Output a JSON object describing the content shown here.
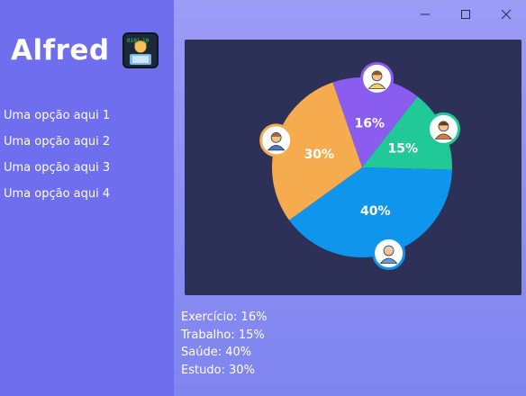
{
  "window": {
    "minimize_label": "—",
    "maximize_label": "☐",
    "close_label": "✕"
  },
  "sidebar": {
    "title": "Alfred",
    "logo_icon": "person-at-computer-icon",
    "items": [
      {
        "label": "Uma opção aqui 1"
      },
      {
        "label": "Uma opção aqui 2"
      },
      {
        "label": "Uma opção aqui 3"
      },
      {
        "label": "Uma opção aqui 4"
      }
    ]
  },
  "chart_data": {
    "type": "pie",
    "categories": [
      "Exercício",
      "Trabalho",
      "Saúde",
      "Estudo"
    ],
    "values": [
      16,
      15,
      40,
      30
    ],
    "labels": [
      "16%",
      "15%",
      "40%",
      "30%"
    ],
    "colors": [
      "#8a5cf0",
      "#20c997",
      "#0f96ec",
      "#f6ac4e"
    ],
    "icons": [
      "exercise-person-icon",
      "worker-person-icon",
      "doctor-person-icon",
      "student-person-icon"
    ],
    "title": "",
    "legend": "none"
  },
  "legend": {
    "rows": [
      {
        "text": "Exercício: 16%"
      },
      {
        "text": "Trabalho: 15%"
      },
      {
        "text": "Saúde: 40%"
      },
      {
        "text": "Estudo: 30%"
      }
    ]
  }
}
